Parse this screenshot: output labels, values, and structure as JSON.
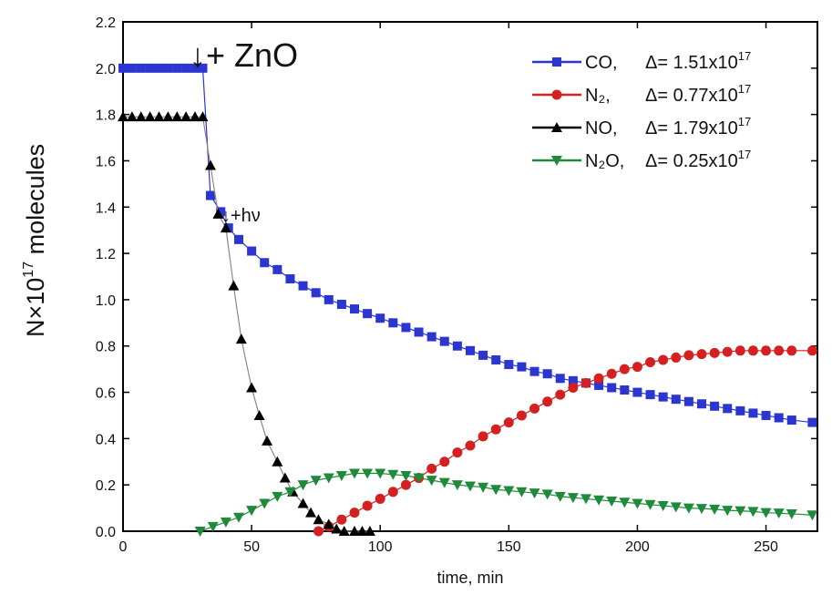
{
  "chart_data": {
    "type": "line",
    "xlabel": "time, min",
    "ylabel": "N×10",
    "ylabel_exp": "17",
    "ylabel_suffix": " molecules",
    "xlim": [
      0,
      270
    ],
    "ylim": [
      0,
      2.2
    ],
    "xticks": [
      "0",
      "50",
      "100",
      "150",
      "200",
      "250"
    ],
    "xtick_values": [
      0,
      50,
      100,
      150,
      200,
      250
    ],
    "yticks": [
      "0.0",
      "0.2",
      "0.4",
      "0.6",
      "0.8",
      "1.0",
      "1.2",
      "1.4",
      "1.6",
      "1.8",
      "2.0",
      "2.2"
    ],
    "ytick_values": [
      0,
      0.2,
      0.4,
      0.6,
      0.8,
      1.0,
      1.2,
      1.4,
      1.6,
      1.8,
      2.0,
      2.2
    ],
    "grid": false,
    "legend_position": "top-right",
    "annotations": [
      {
        "text": "↓+ ZnO",
        "x": 30,
        "y": 2.05
      },
      {
        "text": "↓+hν",
        "x": 35,
        "y": 1.38
      }
    ],
    "series": [
      {
        "name": "CO",
        "legend": "CO,",
        "delta": "Δ= 1.51x10",
        "exp": "17",
        "color": "#2b35d0",
        "marker": "square",
        "x": [
          0,
          3.5,
          7,
          10.5,
          14,
          17.5,
          21,
          24.5,
          28,
          31,
          34,
          38,
          41,
          45,
          50,
          55,
          60,
          65,
          70,
          75,
          80,
          85,
          90,
          95,
          100,
          105,
          110,
          115,
          120,
          125,
          130,
          135,
          140,
          145,
          150,
          155,
          160,
          165,
          170,
          175,
          180,
          185,
          190,
          195,
          200,
          205,
          210,
          215,
          220,
          225,
          230,
          235,
          240,
          245,
          250,
          255,
          260,
          268
        ],
        "y": [
          2.0,
          2.0,
          2.0,
          2.0,
          2.0,
          2.0,
          2.0,
          2.0,
          2.0,
          2.0,
          1.45,
          1.38,
          1.31,
          1.26,
          1.21,
          1.16,
          1.13,
          1.09,
          1.06,
          1.03,
          1.0,
          0.98,
          0.96,
          0.94,
          0.92,
          0.9,
          0.88,
          0.86,
          0.84,
          0.82,
          0.8,
          0.78,
          0.76,
          0.74,
          0.72,
          0.71,
          0.69,
          0.68,
          0.66,
          0.65,
          0.64,
          0.63,
          0.62,
          0.61,
          0.6,
          0.59,
          0.58,
          0.57,
          0.56,
          0.55,
          0.54,
          0.53,
          0.52,
          0.51,
          0.5,
          0.49,
          0.48,
          0.47
        ]
      },
      {
        "name": "N2",
        "legend": "N₂,",
        "delta": "Δ= 0.77x10",
        "exp": "17",
        "color": "#d42020",
        "marker": "circle",
        "x": [
          76,
          80,
          85,
          90,
          95,
          100,
          105,
          110,
          115,
          120,
          125,
          130,
          135,
          140,
          145,
          150,
          155,
          160,
          165,
          170,
          175,
          180,
          185,
          190,
          195,
          200,
          205,
          210,
          215,
          220,
          225,
          230,
          235,
          240,
          245,
          250,
          255,
          260,
          268
        ],
        "y": [
          0.0,
          0.02,
          0.05,
          0.08,
          0.11,
          0.14,
          0.17,
          0.2,
          0.23,
          0.27,
          0.3,
          0.34,
          0.37,
          0.41,
          0.44,
          0.47,
          0.5,
          0.53,
          0.56,
          0.59,
          0.62,
          0.64,
          0.66,
          0.68,
          0.7,
          0.71,
          0.73,
          0.74,
          0.75,
          0.76,
          0.765,
          0.77,
          0.775,
          0.78,
          0.78,
          0.78,
          0.78,
          0.78,
          0.78
        ]
      },
      {
        "name": "NO",
        "legend": "NO,",
        "delta": "Δ= 1.79x10",
        "exp": "17",
        "color": "#000000",
        "marker": "triangle-up",
        "x": [
          0,
          3.5,
          7,
          10.5,
          14,
          17.5,
          21,
          24.5,
          28,
          31,
          34,
          37,
          40,
          43,
          46,
          50,
          53,
          56,
          60,
          63,
          66,
          70,
          73,
          76,
          80,
          83,
          86,
          90,
          93,
          96
        ],
        "y": [
          1.79,
          1.79,
          1.79,
          1.79,
          1.79,
          1.79,
          1.79,
          1.79,
          1.79,
          1.79,
          1.58,
          1.37,
          1.31,
          1.06,
          0.83,
          0.62,
          0.5,
          0.39,
          0.3,
          0.23,
          0.17,
          0.12,
          0.08,
          0.05,
          0.03,
          0.01,
          0.0,
          0.0,
          0.0,
          0.0
        ]
      },
      {
        "name": "N2O",
        "legend": "N₂O,",
        "delta": "Δ= 0.25x10",
        "exp": "17",
        "color": "#1f8a3a",
        "marker": "triangle-down",
        "x": [
          30,
          35,
          40,
          45,
          50,
          55,
          60,
          65,
          70,
          75,
          80,
          85,
          90,
          95,
          100,
          105,
          110,
          115,
          120,
          125,
          130,
          135,
          140,
          145,
          150,
          155,
          160,
          165,
          170,
          175,
          180,
          185,
          190,
          195,
          200,
          205,
          210,
          215,
          220,
          225,
          230,
          235,
          240,
          245,
          250,
          255,
          260,
          268
        ],
        "y": [
          0.0,
          0.02,
          0.04,
          0.06,
          0.09,
          0.12,
          0.15,
          0.17,
          0.2,
          0.22,
          0.23,
          0.24,
          0.25,
          0.25,
          0.25,
          0.245,
          0.24,
          0.23,
          0.22,
          0.21,
          0.2,
          0.195,
          0.19,
          0.18,
          0.175,
          0.17,
          0.165,
          0.16,
          0.15,
          0.145,
          0.14,
          0.135,
          0.13,
          0.125,
          0.12,
          0.115,
          0.11,
          0.105,
          0.1,
          0.098,
          0.095,
          0.09,
          0.088,
          0.085,
          0.08,
          0.078,
          0.075,
          0.07
        ]
      }
    ]
  }
}
